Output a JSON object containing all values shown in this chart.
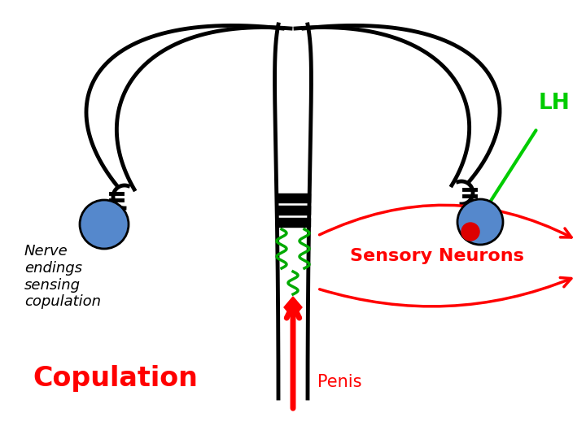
{
  "bg_color": "#ffffff",
  "lh_label": "LH",
  "lh_color": "#00cc00",
  "nerve_label": "Nerve\nendings\nsensing\ncopulation",
  "nerve_color": "#000000",
  "copulation_label": "Copulation",
  "copulation_color": "#ff0000",
  "sensory_label": "Sensory Neurons",
  "sensory_color": "#ff0000",
  "penis_label": "Penis",
  "penis_color": "#ff0000",
  "blue_ball_color": "#5588cc",
  "red_ball_color": "#dd0000",
  "green_squiggle_color": "#00aa00",
  "black_color": "#000000",
  "red_color": "#ff0000",
  "figw": 7.2,
  "figh": 5.4,
  "dpi": 100
}
